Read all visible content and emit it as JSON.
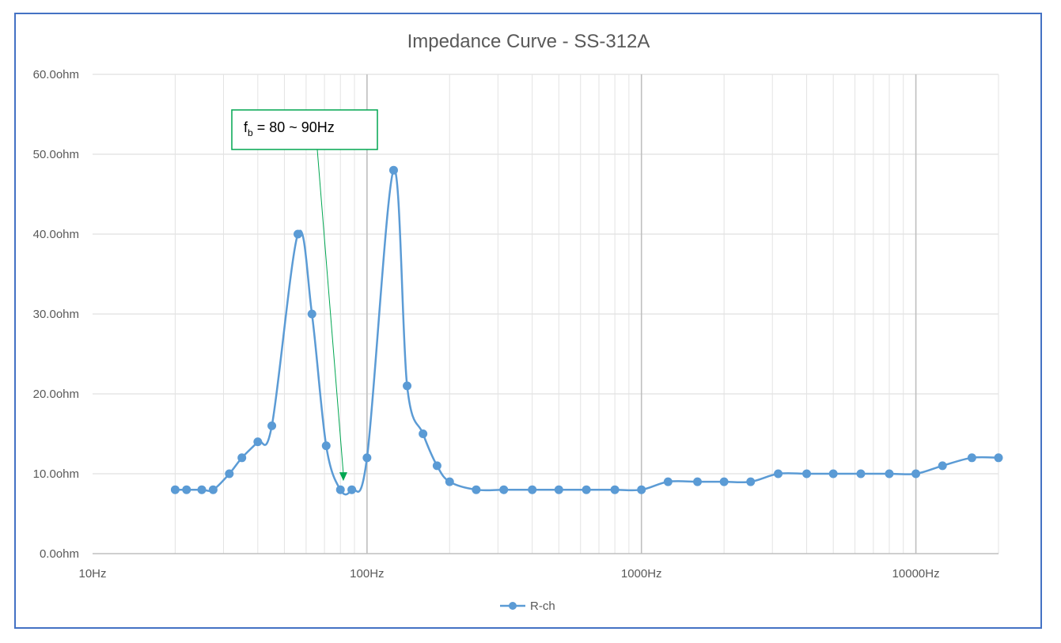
{
  "chart_data": {
    "type": "line",
    "title": "Impedance Curve - SS-312A",
    "xlabel": "",
    "ylabel": "",
    "x_scale": "log",
    "xlim": [
      10,
      20000
    ],
    "ylim": [
      0,
      60
    ],
    "grid": true,
    "legend_position": "bottom",
    "y_ticks": [
      {
        "value": 0,
        "label": "0.0ohm"
      },
      {
        "value": 10,
        "label": "10.0ohm"
      },
      {
        "value": 20,
        "label": "20.0ohm"
      },
      {
        "value": 30,
        "label": "30.0ohm"
      },
      {
        "value": 40,
        "label": "40.0ohm"
      },
      {
        "value": 50,
        "label": "50.0ohm"
      },
      {
        "value": 60,
        "label": "60.0ohm"
      }
    ],
    "x_ticks": [
      {
        "value": 10,
        "label": "10Hz"
      },
      {
        "value": 100,
        "label": "100Hz"
      },
      {
        "value": 1000,
        "label": "1000Hz"
      },
      {
        "value": 10000,
        "label": "10000Hz"
      }
    ],
    "series": [
      {
        "name": "R-ch",
        "color": "#5b9bd5",
        "x": [
          20,
          22,
          25,
          27.5,
          31.5,
          35,
          40,
          45,
          56,
          63,
          71,
          80,
          88,
          100,
          125,
          140,
          160,
          180,
          200,
          250,
          315,
          400,
          500,
          630,
          800,
          1000,
          1250,
          1600,
          2000,
          2500,
          3150,
          4000,
          5000,
          6300,
          8000,
          10000,
          12500,
          16000,
          20000
        ],
        "y": [
          8,
          8,
          8,
          8,
          10,
          12,
          14,
          16,
          40,
          30,
          13.5,
          8,
          8,
          12,
          48,
          21,
          15,
          11,
          9,
          8,
          8,
          8,
          8,
          8,
          8,
          8,
          9,
          9,
          9,
          9,
          10,
          10,
          10,
          10,
          10,
          10,
          11,
          12,
          12
        ]
      }
    ],
    "annotations": [
      {
        "main": "f",
        "sub": "b",
        "rest": " = 80 ~ 90Hz",
        "target_x": 82,
        "target_y": 9.2
      }
    ]
  }
}
